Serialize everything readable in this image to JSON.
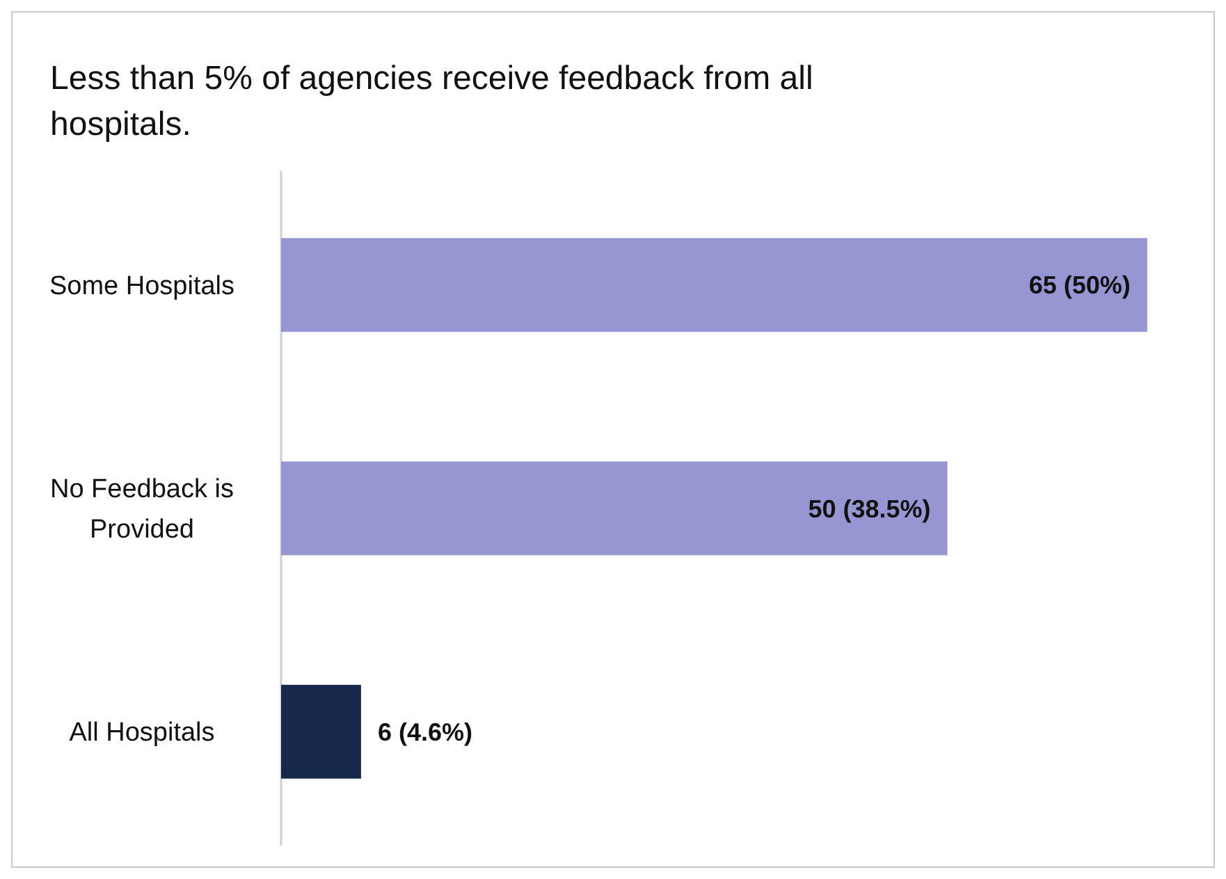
{
  "chart_data": {
    "type": "bar",
    "orientation": "horizontal",
    "title": "Less than 5% of agencies receive feedback from all hospitals.",
    "categories": [
      "Some Hospitals",
      "No Feedback is Provided",
      "All Hospitals"
    ],
    "values": [
      65,
      50,
      6
    ],
    "colors": [
      "#9696d2",
      "#9696d2",
      "#17294a"
    ],
    "value_labels": [
      "65 (50%)",
      "50 (38.5%)",
      "6 (4.6%)"
    ]
  }
}
